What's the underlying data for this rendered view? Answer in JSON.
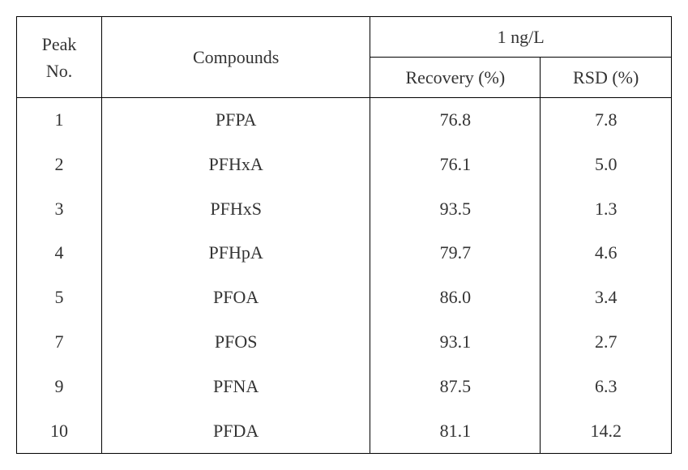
{
  "table": {
    "headers": {
      "peak_no": "Peak\nNo.",
      "compounds": "Compounds",
      "concentration": "1 ng/L",
      "recovery": "Recovery (%)",
      "rsd": "RSD (%)"
    },
    "rows": [
      {
        "peak": "1",
        "compound": "PFPA",
        "recovery": "76.8",
        "rsd": "7.8"
      },
      {
        "peak": "2",
        "compound": "PFHxA",
        "recovery": "76.1",
        "rsd": "5.0"
      },
      {
        "peak": "3",
        "compound": "PFHxS",
        "recovery": "93.5",
        "rsd": "1.3"
      },
      {
        "peak": "4",
        "compound": "PFHpA",
        "recovery": "79.7",
        "rsd": "4.6"
      },
      {
        "peak": "5",
        "compound": "PFOA",
        "recovery": "86.0",
        "rsd": "3.4"
      },
      {
        "peak": "7",
        "compound": "PFOS",
        "recovery": "93.1",
        "rsd": "2.7"
      },
      {
        "peak": "9",
        "compound": "PFNA",
        "recovery": "87.5",
        "rsd": "6.3"
      },
      {
        "peak": "10",
        "compound": "PFDA",
        "recovery": "81.1",
        "rsd": "14.2"
      }
    ],
    "styling": {
      "border_color": "#000000",
      "text_color": "#333333",
      "background_color": "#ffffff",
      "font_family": "Times New Roman, serif",
      "font_size": 22,
      "cell_padding": 12,
      "col_widths": {
        "peak": "13%",
        "compound": "41%",
        "recovery": "26%",
        "rsd": "20%"
      }
    }
  }
}
